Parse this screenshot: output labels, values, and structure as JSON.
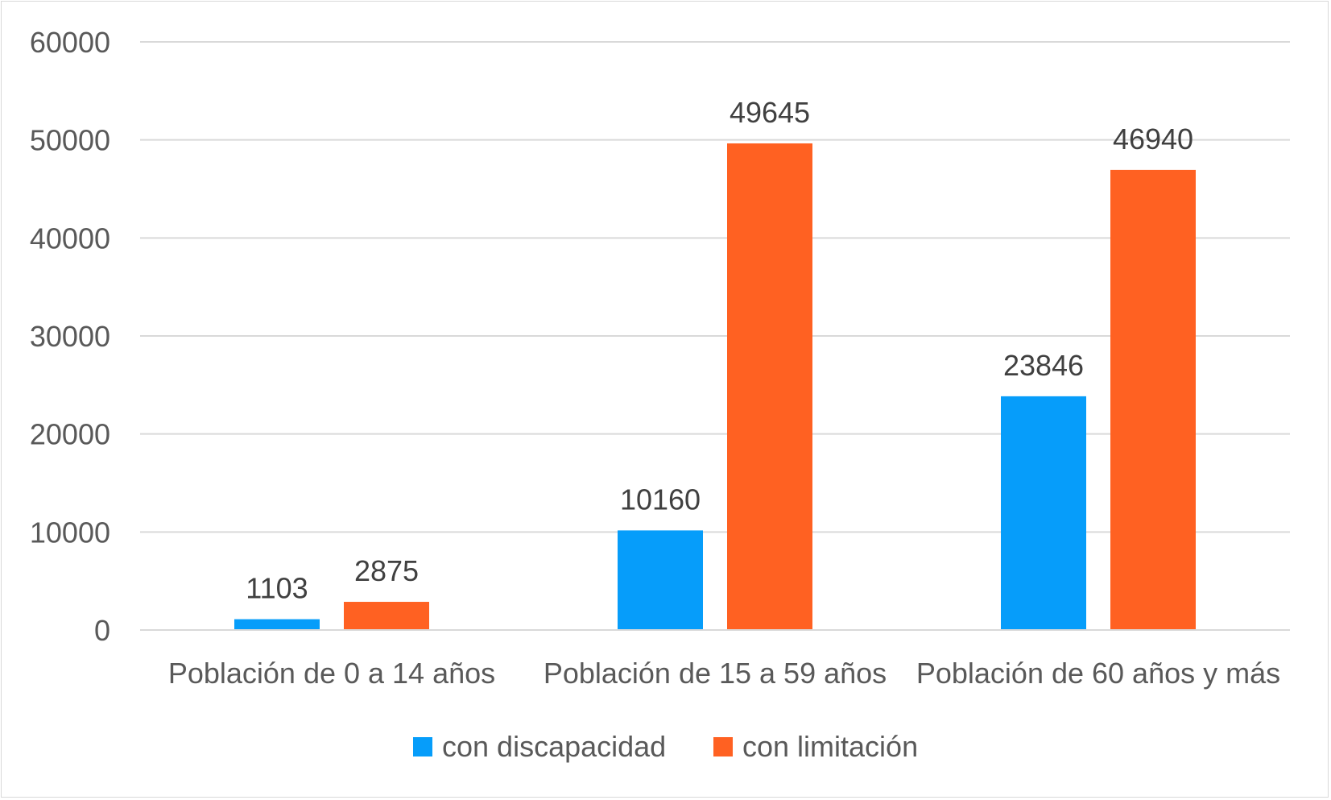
{
  "chart_data": {
    "type": "bar",
    "title": "",
    "xlabel": "",
    "ylabel": "",
    "categories": [
      "Población de 0 a 14 años",
      "Población de 15 a 59 años",
      "Población de 60 años y más"
    ],
    "series": [
      {
        "name": "con discapacidad",
        "color": "#069dfa",
        "values": [
          1103,
          10160,
          23846
        ]
      },
      {
        "name": "con limitación",
        "color": "#ff6122",
        "values": [
          2875,
          49645,
          46940
        ]
      }
    ],
    "ylim": [
      0,
      60000
    ],
    "yticks": [
      0,
      10000,
      20000,
      30000,
      40000,
      50000,
      60000
    ],
    "grid": true,
    "gridColor": "#d9d9d9",
    "legend": "bottom",
    "data_labels": true
  }
}
